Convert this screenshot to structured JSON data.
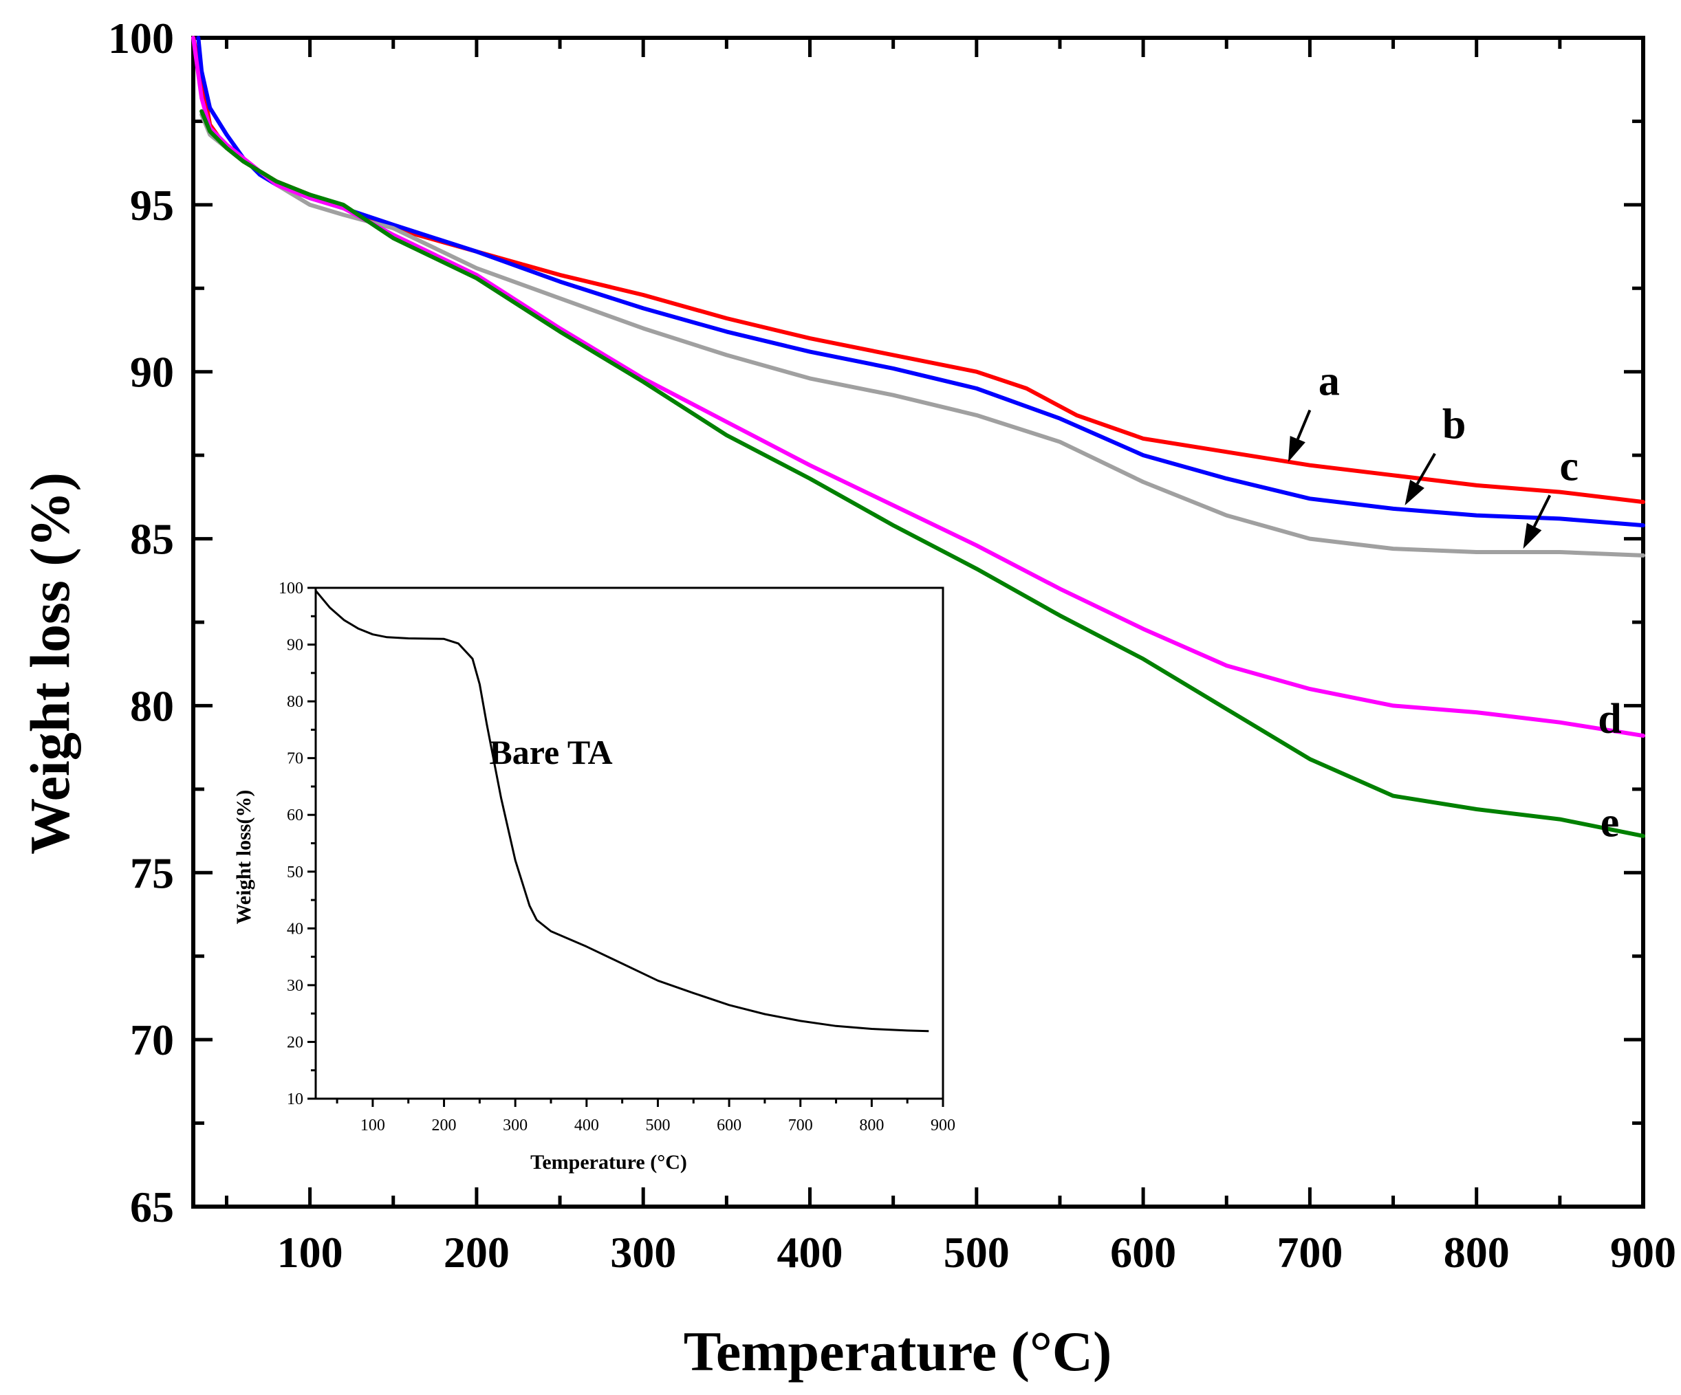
{
  "chart_data": [
    {
      "type": "line",
      "role": "main",
      "title": "",
      "xlabel": "Temperature (°C)",
      "ylabel": "Weight loss (%)",
      "xlim": [
        30,
        900
      ],
      "ylim": [
        65,
        100
      ],
      "xticks": [
        100,
        200,
        300,
        400,
        500,
        600,
        700,
        800,
        900
      ],
      "yticks": [
        65,
        70,
        75,
        80,
        85,
        90,
        95,
        100
      ],
      "minor_x_step": 50,
      "minor_y_step": 2.5,
      "grid": false,
      "series": [
        {
          "name": "a",
          "color": "#ff0000",
          "x": [
            30,
            35,
            40,
            50,
            60,
            70,
            80,
            100,
            120,
            150,
            200,
            250,
            300,
            350,
            400,
            450,
            500,
            530,
            560,
            600,
            650,
            700,
            750,
            800,
            850,
            900
          ],
          "y": [
            100,
            98.8,
            97.4,
            96.7,
            96.3,
            96.0,
            95.7,
            95.3,
            94.9,
            94.3,
            93.6,
            92.9,
            92.3,
            91.6,
            91.0,
            90.5,
            90.0,
            89.5,
            88.7,
            88.0,
            87.6,
            87.2,
            86.9,
            86.6,
            86.4,
            86.1
          ]
        },
        {
          "name": "b",
          "color": "#0000ff",
          "x": [
            33,
            35,
            40,
            50,
            60,
            70,
            80,
            100,
            120,
            150,
            200,
            250,
            300,
            350,
            400,
            450,
            500,
            550,
            600,
            650,
            700,
            750,
            800,
            850,
            900
          ],
          "y": [
            100,
            99.0,
            97.9,
            97.1,
            96.4,
            95.9,
            95.6,
            95.2,
            94.9,
            94.4,
            93.6,
            92.7,
            91.9,
            91.2,
            90.6,
            90.1,
            89.5,
            88.6,
            87.5,
            86.8,
            86.2,
            85.9,
            85.7,
            85.6,
            85.4
          ]
        },
        {
          "name": "c",
          "color": "#a0a0a0",
          "x": [
            35,
            40,
            50,
            60,
            70,
            80,
            100,
            120,
            150,
            200,
            250,
            300,
            350,
            400,
            450,
            500,
            550,
            600,
            650,
            700,
            750,
            800,
            850,
            900
          ],
          "y": [
            97.7,
            97.1,
            96.7,
            96.3,
            96.0,
            95.6,
            95.0,
            94.7,
            94.3,
            93.1,
            92.2,
            91.3,
            90.5,
            89.8,
            89.3,
            88.7,
            87.9,
            86.7,
            85.7,
            85.0,
            84.7,
            84.6,
            84.6,
            84.5
          ]
        },
        {
          "name": "d",
          "color": "#ff00ff",
          "x": [
            30,
            35,
            40,
            50,
            60,
            70,
            80,
            100,
            120,
            150,
            200,
            250,
            300,
            350,
            400,
            450,
            500,
            550,
            600,
            650,
            700,
            750,
            800,
            850,
            900
          ],
          "y": [
            100,
            98.2,
            97.3,
            96.8,
            96.4,
            96.0,
            95.6,
            95.2,
            94.9,
            94.1,
            92.9,
            91.3,
            89.8,
            88.5,
            87.2,
            86.0,
            84.8,
            83.5,
            82.3,
            81.2,
            80.5,
            80.0,
            79.8,
            79.5,
            79.1
          ]
        },
        {
          "name": "e",
          "color": "#008000",
          "x": [
            35,
            40,
            50,
            60,
            70,
            80,
            100,
            120,
            150,
            200,
            250,
            300,
            350,
            400,
            450,
            500,
            550,
            600,
            650,
            700,
            750,
            800,
            850,
            900
          ],
          "y": [
            97.8,
            97.2,
            96.7,
            96.3,
            96.0,
            95.7,
            95.3,
            95.0,
            94.0,
            92.8,
            91.2,
            89.7,
            88.1,
            86.8,
            85.4,
            84.1,
            82.7,
            81.4,
            79.9,
            78.4,
            77.3,
            76.9,
            76.6,
            76.1
          ]
        }
      ],
      "curve_labels": [
        {
          "text": "a",
          "x": 687,
          "y": 87.3,
          "arrow_from_x": 700,
          "arrow_from_y": 88.85
        },
        {
          "text": "b",
          "x": 757,
          "y": 86.0,
          "arrow_from_x": 775,
          "arrow_from_y": 87.55
        },
        {
          "text": "c",
          "x": 828,
          "y": 84.7,
          "arrow_from_x": 844,
          "arrow_from_y": 86.3
        },
        {
          "text": "d",
          "x": 880,
          "y": 79.6
        },
        {
          "text": "e",
          "x": 880,
          "y": 76.5
        }
      ]
    },
    {
      "type": "line",
      "role": "inset",
      "title": "",
      "annotation": "Bare TA",
      "annotation_x": 350,
      "annotation_y": 69,
      "xlabel": "Temperature (°C)",
      "ylabel": "Weight loss(%)",
      "xlim": [
        20,
        900
      ],
      "ylim": [
        10,
        100
      ],
      "xticks": [
        100,
        200,
        300,
        400,
        500,
        600,
        700,
        800,
        900
      ],
      "yticks": [
        10,
        20,
        30,
        40,
        50,
        60,
        70,
        80,
        90,
        100
      ],
      "minor_x_step": 50,
      "minor_y_step": 5,
      "grid": false,
      "series": [
        {
          "name": "Bare TA",
          "color": "#000000",
          "x": [
            20,
            40,
            60,
            80,
            100,
            120,
            150,
            200,
            220,
            240,
            250,
            260,
            280,
            300,
            320,
            330,
            350,
            400,
            450,
            500,
            550,
            600,
            650,
            700,
            750,
            800,
            850,
            880
          ],
          "y": [
            99.5,
            96.5,
            94.3,
            92.8,
            91.8,
            91.3,
            91.1,
            91.0,
            90.2,
            87.5,
            83.0,
            76.0,
            63.0,
            52.0,
            44.0,
            41.5,
            39.5,
            36.8,
            33.8,
            30.8,
            28.6,
            26.5,
            24.9,
            23.7,
            22.8,
            22.3,
            22.0,
            21.9
          ]
        }
      ]
    }
  ]
}
